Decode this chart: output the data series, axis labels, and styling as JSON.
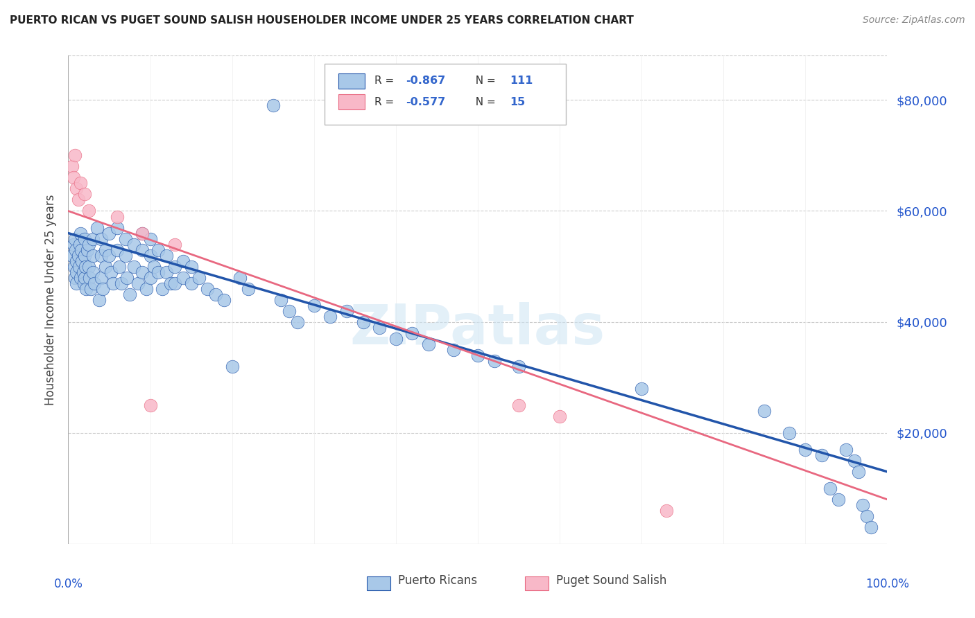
{
  "title": "PUERTO RICAN VS PUGET SOUND SALISH HOUSEHOLDER INCOME UNDER 25 YEARS CORRELATION CHART",
  "source": "Source: ZipAtlas.com",
  "ylabel": "Householder Income Under 25 years",
  "right_yticks": [
    "$80,000",
    "$60,000",
    "$40,000",
    "$20,000"
  ],
  "right_ytick_vals": [
    80000,
    60000,
    40000,
    20000
  ],
  "ylim": [
    0,
    88000
  ],
  "xlim": [
    0.0,
    1.0
  ],
  "blue_marker_color": "#a8c8e8",
  "blue_line_color": "#2255aa",
  "pink_marker_color": "#f8b8c8",
  "pink_line_color": "#e86880",
  "legend_r_color": "#3366cc",
  "watermark_text": "ZIPatlas",
  "blue_points_x": [
    0.005,
    0.006,
    0.007,
    0.008,
    0.008,
    0.009,
    0.01,
    0.01,
    0.01,
    0.012,
    0.013,
    0.014,
    0.015,
    0.015,
    0.016,
    0.017,
    0.018,
    0.019,
    0.02,
    0.02,
    0.02,
    0.021,
    0.022,
    0.023,
    0.025,
    0.025,
    0.026,
    0.028,
    0.03,
    0.03,
    0.03,
    0.032,
    0.035,
    0.038,
    0.04,
    0.04,
    0.04,
    0.042,
    0.045,
    0.045,
    0.05,
    0.05,
    0.052,
    0.055,
    0.06,
    0.06,
    0.062,
    0.065,
    0.07,
    0.07,
    0.072,
    0.075,
    0.08,
    0.08,
    0.085,
    0.09,
    0.09,
    0.09,
    0.095,
    0.1,
    0.1,
    0.1,
    0.105,
    0.11,
    0.11,
    0.115,
    0.12,
    0.12,
    0.125,
    0.13,
    0.13,
    0.14,
    0.14,
    0.15,
    0.15,
    0.16,
    0.17,
    0.18,
    0.19,
    0.2,
    0.21,
    0.22,
    0.25,
    0.26,
    0.27,
    0.28,
    0.3,
    0.32,
    0.34,
    0.36,
    0.38,
    0.4,
    0.42,
    0.44,
    0.47,
    0.5,
    0.52,
    0.55,
    0.7,
    0.85,
    0.88,
    0.9,
    0.92,
    0.93,
    0.94,
    0.95,
    0.96,
    0.965,
    0.97,
    0.975,
    0.98
  ],
  "blue_points_y": [
    52000,
    54000,
    50000,
    55000,
    48000,
    53000,
    51000,
    49000,
    47000,
    52000,
    50000,
    54000,
    56000,
    48000,
    53000,
    51000,
    49000,
    47000,
    55000,
    52000,
    48000,
    50000,
    46000,
    53000,
    54000,
    50000,
    48000,
    46000,
    55000,
    52000,
    49000,
    47000,
    57000,
    44000,
    55000,
    52000,
    48000,
    46000,
    53000,
    50000,
    56000,
    52000,
    49000,
    47000,
    57000,
    53000,
    50000,
    47000,
    55000,
    52000,
    48000,
    45000,
    54000,
    50000,
    47000,
    56000,
    53000,
    49000,
    46000,
    55000,
    52000,
    48000,
    50000,
    53000,
    49000,
    46000,
    52000,
    49000,
    47000,
    50000,
    47000,
    51000,
    48000,
    50000,
    47000,
    48000,
    46000,
    45000,
    44000,
    32000,
    48000,
    46000,
    79000,
    44000,
    42000,
    40000,
    43000,
    41000,
    42000,
    40000,
    39000,
    37000,
    38000,
    36000,
    35000,
    34000,
    33000,
    32000,
    28000,
    24000,
    20000,
    17000,
    16000,
    10000,
    8000,
    17000,
    15000,
    13000,
    7000,
    5000,
    3000
  ],
  "pink_points_x": [
    0.005,
    0.006,
    0.008,
    0.01,
    0.012,
    0.015,
    0.02,
    0.025,
    0.06,
    0.09,
    0.1,
    0.13,
    0.55,
    0.6,
    0.73
  ],
  "pink_points_y": [
    68000,
    66000,
    70000,
    64000,
    62000,
    65000,
    63000,
    60000,
    59000,
    56000,
    25000,
    54000,
    25000,
    23000,
    6000
  ]
}
